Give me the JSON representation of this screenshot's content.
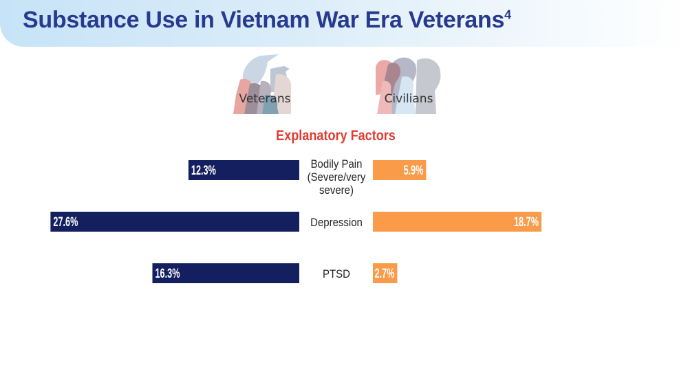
{
  "title": "Substance Use in Vietnam War Era Veterans",
  "title_superscript": "4",
  "groups": {
    "veterans": "Veterans",
    "civilians": "Civilians"
  },
  "section_title": "Explanatory Factors",
  "colors": {
    "veterans": "#131f5e",
    "civilians": "#f99b48",
    "title": "#283a8f",
    "section_title": "#e03c31"
  },
  "icons": {
    "veterans": "veteran-silhouettes-icon",
    "civilians": "civilian-silhouettes-icon"
  },
  "chart_data": {
    "type": "bar",
    "orientation": "horizontal-diverging",
    "categories": [
      "Bodily Pain (Severe/very severe)",
      "Depression",
      "PTSD"
    ],
    "series": [
      {
        "name": "Veterans",
        "values": [
          12.3,
          27.6,
          16.3
        ],
        "labels": [
          "12.3%",
          "27.6%",
          "16.3%"
        ]
      },
      {
        "name": "Civilians",
        "values": [
          5.9,
          18.7,
          2.7
        ],
        "labels": [
          "5.9%",
          "18.7%",
          "2.7%"
        ]
      }
    ],
    "unit": "%"
  }
}
